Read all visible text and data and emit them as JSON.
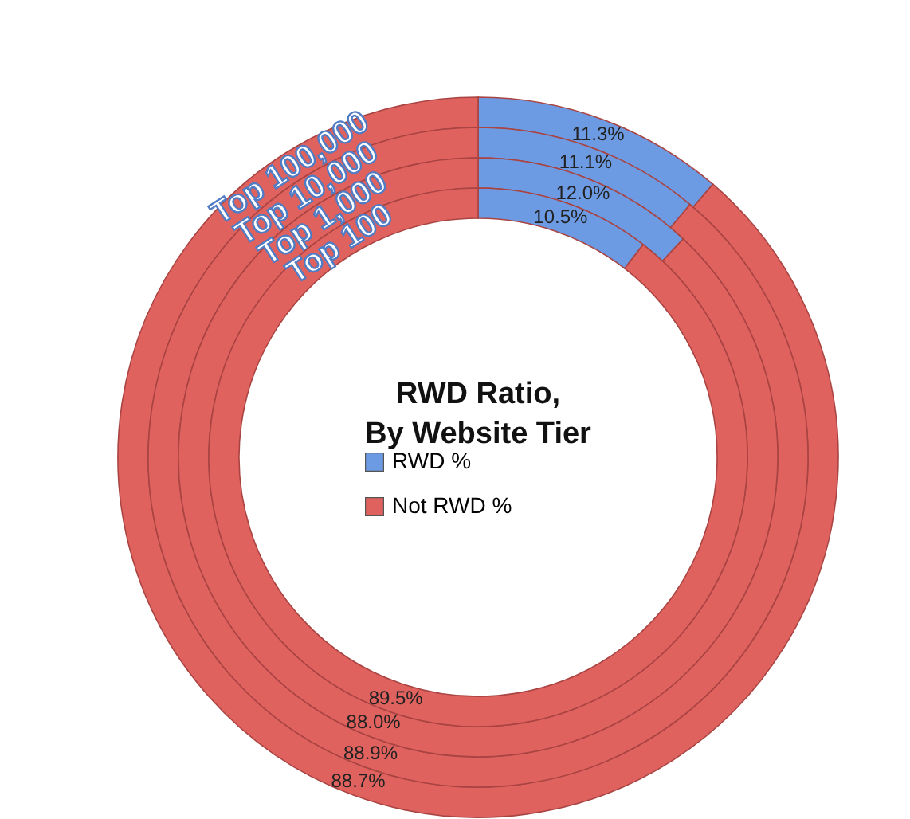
{
  "chart_data": [
    {
      "type": "donut",
      "title": "RWD Ratio,\nBy Website Tier",
      "categories": [
        "RWD %",
        "Not RWD %"
      ],
      "colors": [
        "#6d9be3",
        "#e0625f"
      ],
      "legend": "center",
      "series": [
        {
          "name": "Top 100,000",
          "values": [
            11.3,
            88.7
          ],
          "value_labels": [
            "11.3%",
            "88.7%"
          ]
        }
      ]
    },
    {
      "type": "donut",
      "categories": [
        null,
        null
      ],
      "colors": [
        "#6d9be3",
        "#e0625f"
      ],
      "series": [
        {
          "name": "Top 10,000",
          "values": [
            11.1,
            88.9
          ],
          "value_labels": [
            "11.1%",
            "88.9%"
          ]
        }
      ]
    },
    {
      "type": "donut",
      "categories": [
        null,
        null
      ],
      "colors": [
        "#6d9be3",
        "#e0625f"
      ],
      "series": [
        {
          "name": "Top 1,000",
          "values": [
            12.0,
            88.0
          ],
          "value_labels": [
            "12.0%",
            "88.0%"
          ]
        }
      ]
    },
    {
      "type": "donut",
      "categories": [
        null,
        null
      ],
      "colors": [
        "#6d9be3",
        "#e0625f"
      ],
      "series": [
        {
          "name": "Top 100",
          "values": [
            10.5,
            89.5
          ],
          "value_labels": [
            "10.5%",
            "89.5%"
          ]
        }
      ]
    }
  ]
}
